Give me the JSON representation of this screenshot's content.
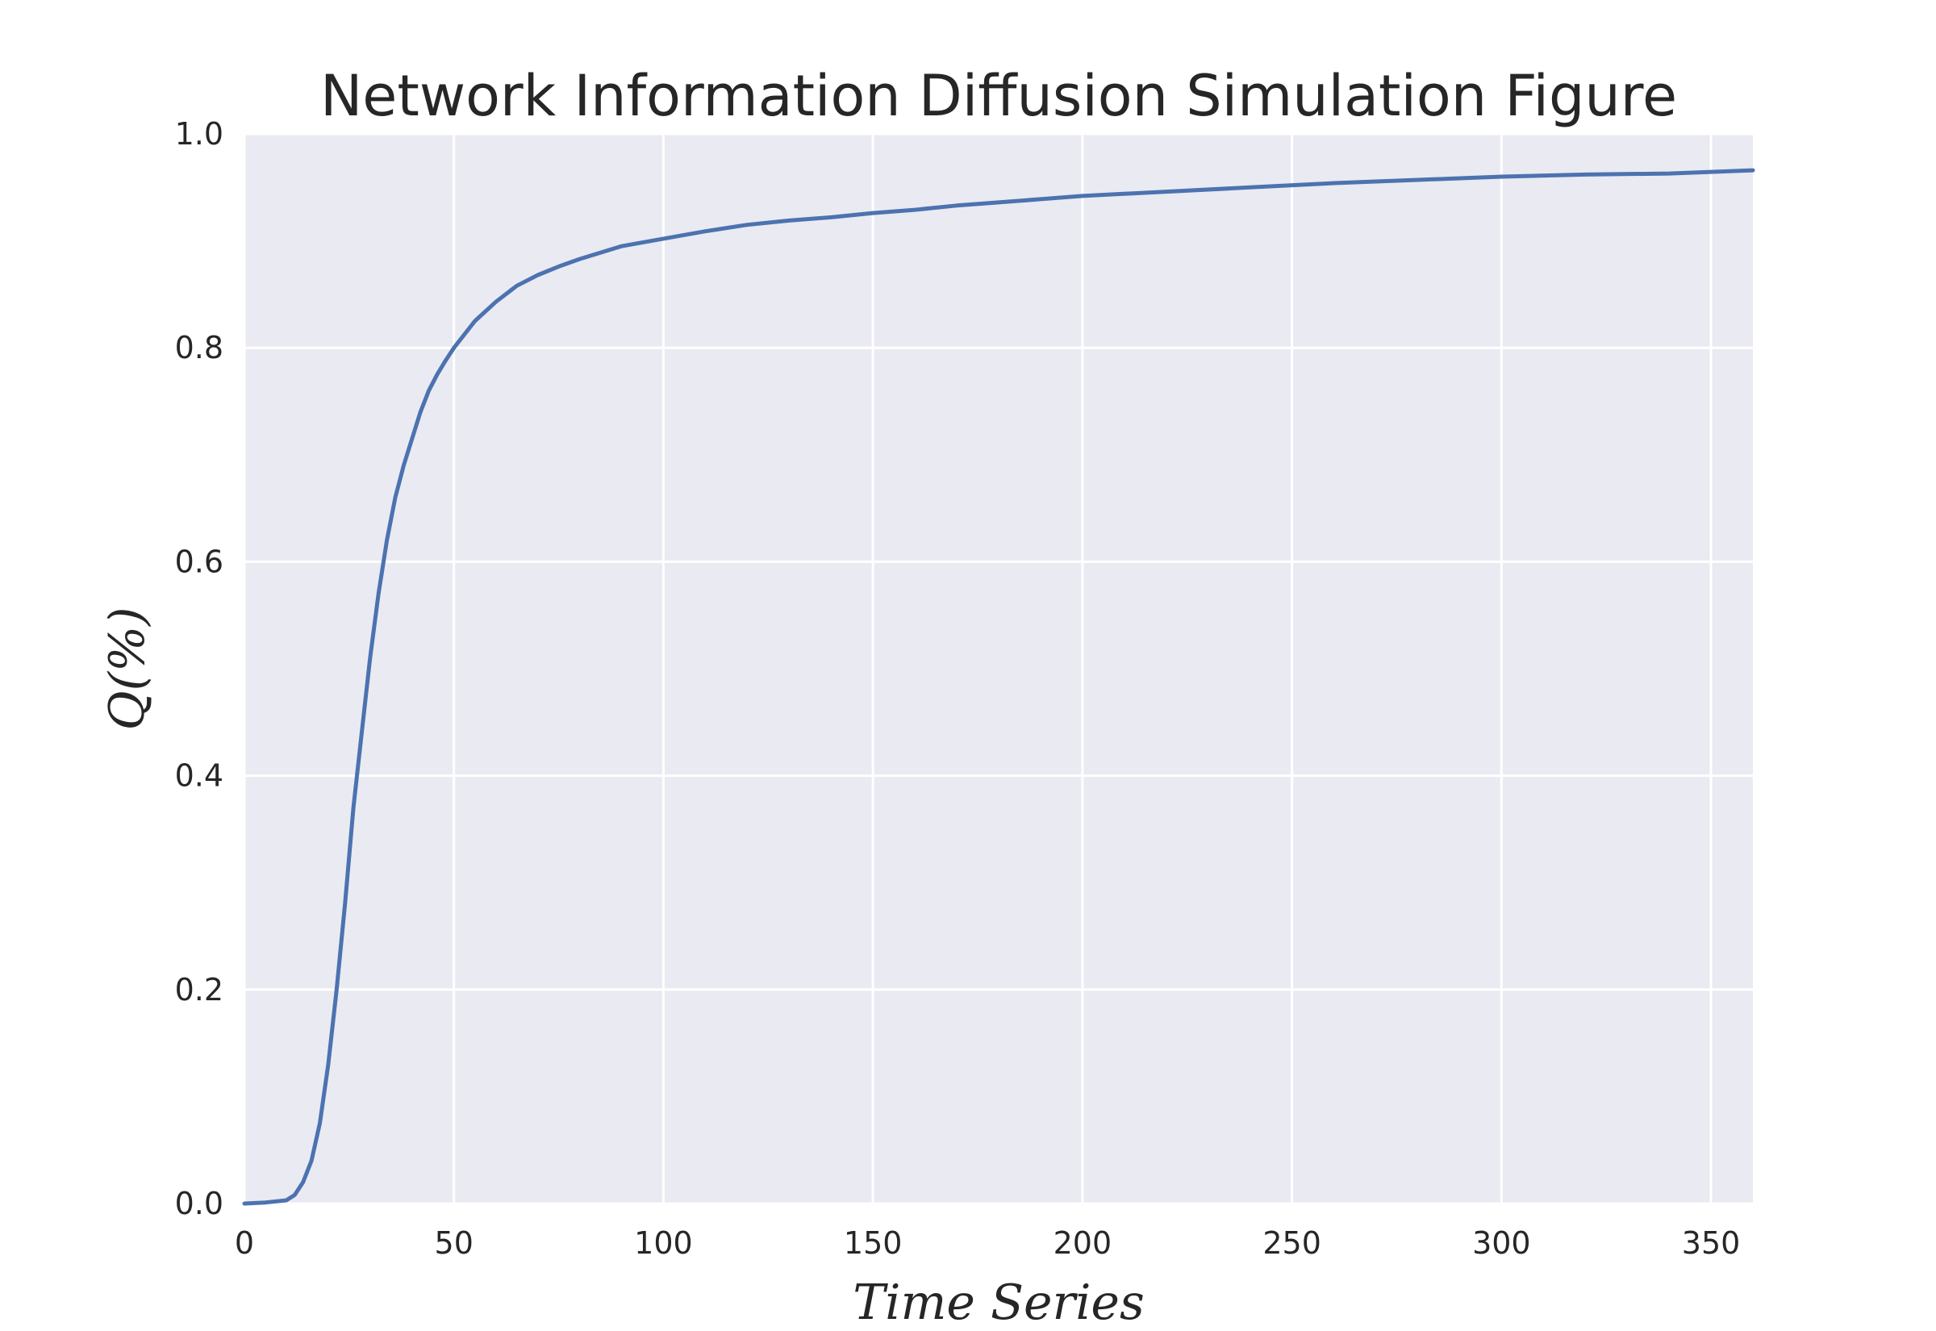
{
  "chart_data": {
    "type": "line",
    "title": "Network Information Diffusion Simulation Figure",
    "xlabel": "Time Series",
    "ylabel": "Q(%)",
    "xlim": [
      0,
      360
    ],
    "ylim": [
      0,
      1.0
    ],
    "x_ticks": [
      0,
      50,
      100,
      150,
      200,
      250,
      300,
      350
    ],
    "x_tick_labels": [
      "0",
      "50",
      "100",
      "150",
      "200",
      "250",
      "300",
      "350"
    ],
    "y_ticks": [
      0.0,
      0.2,
      0.4,
      0.6,
      0.8,
      1.0
    ],
    "y_tick_labels": [
      "0.0",
      "0.2",
      "0.4",
      "0.6",
      "0.8",
      "1.0"
    ],
    "grid": true,
    "colors": {
      "background": "#eaeaf2",
      "grid": "#ffffff",
      "line": "#4c72b0"
    },
    "series": [
      {
        "x": [
          0,
          5,
          10,
          12,
          14,
          16,
          18,
          20,
          22,
          24,
          26,
          28,
          30,
          32,
          34,
          36,
          38,
          40,
          42,
          44,
          46,
          48,
          50,
          55,
          60,
          65,
          70,
          75,
          80,
          90,
          100,
          110,
          120,
          130,
          140,
          150,
          160,
          170,
          180,
          190,
          200,
          220,
          240,
          260,
          280,
          300,
          320,
          340,
          360
        ],
        "y": [
          0.0,
          0.001,
          0.003,
          0.008,
          0.02,
          0.04,
          0.075,
          0.13,
          0.2,
          0.28,
          0.37,
          0.44,
          0.51,
          0.57,
          0.62,
          0.66,
          0.69,
          0.715,
          0.74,
          0.76,
          0.775,
          0.788,
          0.8,
          0.825,
          0.843,
          0.858,
          0.868,
          0.876,
          0.883,
          0.895,
          0.902,
          0.909,
          0.915,
          0.919,
          0.922,
          0.926,
          0.929,
          0.933,
          0.936,
          0.939,
          0.942,
          0.946,
          0.95,
          0.954,
          0.957,
          0.96,
          0.962,
          0.963,
          0.966
        ]
      }
    ]
  }
}
